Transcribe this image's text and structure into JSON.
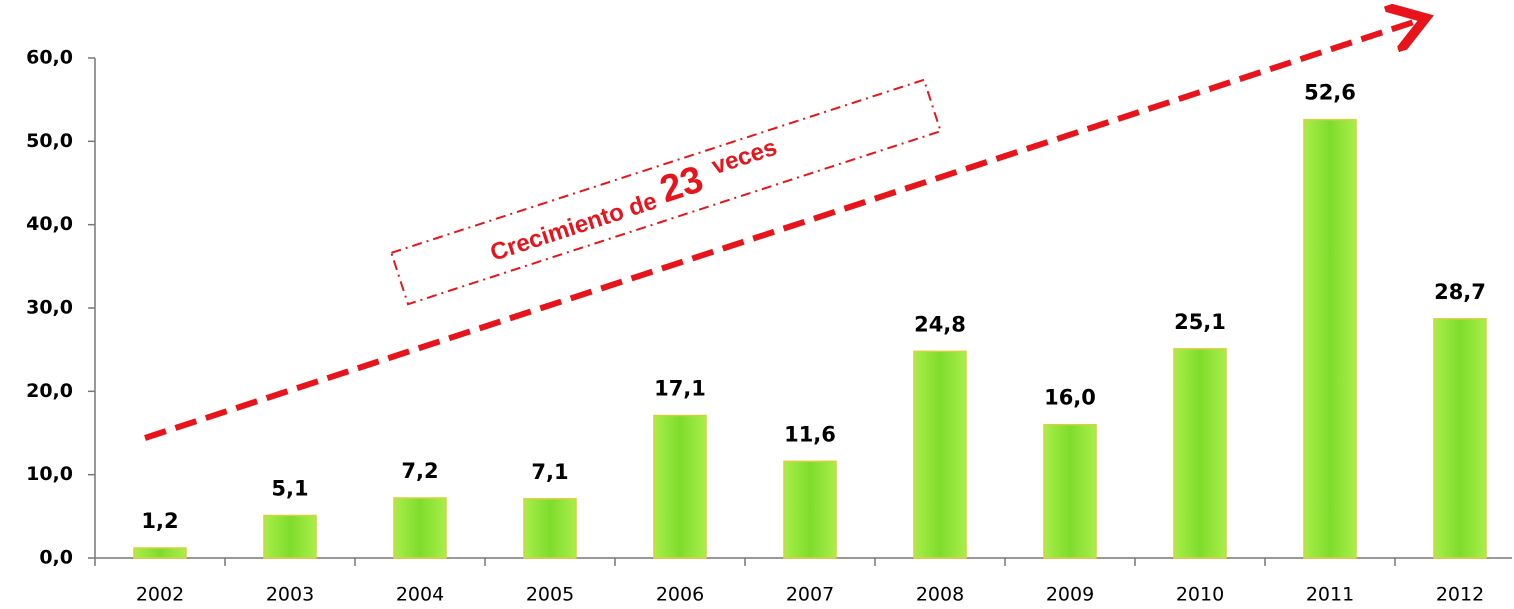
{
  "chart_data": {
    "type": "bar",
    "categories": [
      "2002",
      "2003",
      "2004",
      "2005",
      "2006",
      "2007",
      "2008",
      "2009",
      "2010",
      "2011",
      "2012"
    ],
    "values": [
      1.2,
      5.1,
      7.2,
      7.1,
      17.1,
      11.6,
      24.8,
      16.0,
      25.1,
      52.6,
      28.7
    ],
    "value_labels": [
      "1,2",
      "5,1",
      "7,2",
      "7,1",
      "17,1",
      "11,6",
      "24,8",
      "16,0",
      "25,1",
      "52,6",
      "28,7"
    ],
    "color": "#88e03a",
    "ylim": [
      0,
      60
    ],
    "yticks": [
      {
        "value": 0,
        "label": "0,0"
      },
      {
        "value": 10,
        "label": "10,0"
      },
      {
        "value": 20,
        "label": "20,0"
      },
      {
        "value": 30,
        "label": "30,0"
      },
      {
        "value": 40,
        "label": "40,0"
      },
      {
        "value": 50,
        "label": "50,0"
      },
      {
        "value": 60,
        "label": "60,0"
      }
    ],
    "grid": false,
    "annotation": {
      "prefix": "Crecimiento de",
      "number": "23",
      "suffix": "veces"
    }
  }
}
